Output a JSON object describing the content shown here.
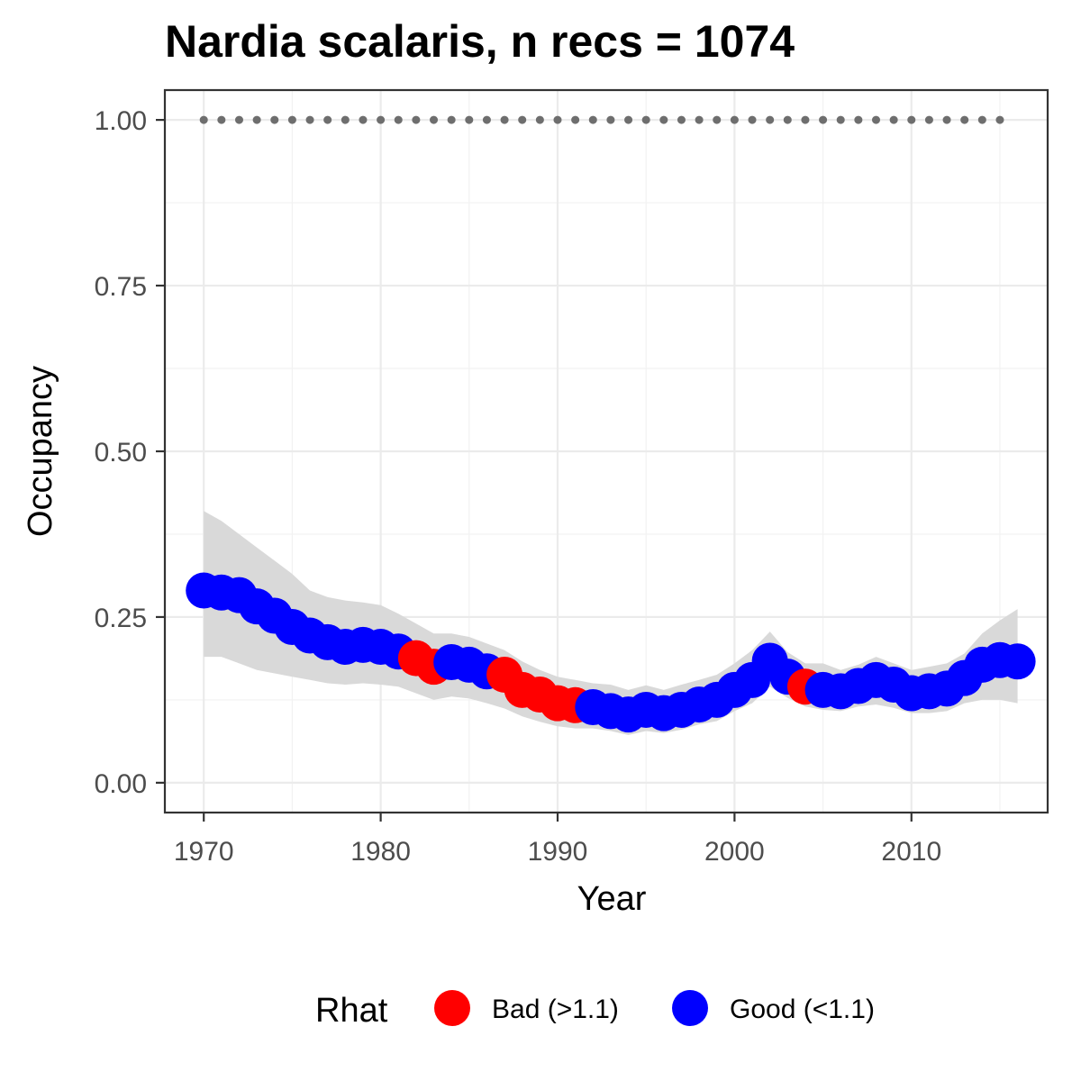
{
  "chart_data": {
    "type": "scatter",
    "title": "Nardia scalaris, n recs = 1074",
    "xlabel": "Year",
    "ylabel": "Occupancy",
    "xlim": [
      1967.8,
      2017.7
    ],
    "ylim": [
      -0.045,
      1.045
    ],
    "x_ticks": [
      1970,
      1980,
      1990,
      2000,
      2010
    ],
    "x_tick_labels": [
      "1970",
      "1980",
      "1990",
      "2000",
      "2010"
    ],
    "y_ticks": [
      0,
      0.25,
      0.5,
      0.75,
      1.0
    ],
    "y_tick_labels": [
      "0.00",
      "0.25",
      "0.50",
      "0.75",
      "1.00"
    ],
    "grid": true,
    "legend": {
      "title": "Rhat",
      "position": "bottom",
      "entries": [
        {
          "label": "Bad (>1.1)",
          "color": "#ff0000"
        },
        {
          "label": "Good (<1.1)",
          "color": "#0000ff"
        }
      ]
    },
    "colors": {
      "bad": "#ff0000",
      "good": "#0000ff",
      "ribbon": "#d9d9d9",
      "reference": "#6e6e6e"
    },
    "series": [
      {
        "key": "occupancy",
        "years": [
          1970,
          1971,
          1972,
          1973,
          1974,
          1975,
          1976,
          1977,
          1978,
          1979,
          1980,
          1981,
          1982,
          1983,
          1984,
          1985,
          1986,
          1987,
          1988,
          1989,
          1990,
          1991,
          1992,
          1993,
          1994,
          1995,
          1996,
          1997,
          1998,
          1999,
          2000,
          2001,
          2002,
          2003,
          2004,
          2005,
          2006,
          2007,
          2008,
          2009,
          2010,
          2011,
          2012,
          2013,
          2014,
          2015,
          2016
        ],
        "values": [
          0.29,
          0.287,
          0.283,
          0.266,
          0.252,
          0.235,
          0.222,
          0.212,
          0.205,
          0.208,
          0.205,
          0.198,
          0.188,
          0.175,
          0.182,
          0.178,
          0.168,
          0.163,
          0.14,
          0.133,
          0.12,
          0.117,
          0.114,
          0.108,
          0.103,
          0.11,
          0.105,
          0.11,
          0.118,
          0.125,
          0.14,
          0.155,
          0.184,
          0.16,
          0.145,
          0.14,
          0.138,
          0.146,
          0.155,
          0.148,
          0.135,
          0.138,
          0.142,
          0.158,
          0.178,
          0.185,
          0.183
        ],
        "rhat": [
          "good",
          "good",
          "good",
          "good",
          "good",
          "good",
          "good",
          "good",
          "good",
          "good",
          "good",
          "good",
          "bad",
          "bad",
          "good",
          "good",
          "good",
          "bad",
          "bad",
          "bad",
          "bad",
          "bad",
          "good",
          "good",
          "good",
          "good",
          "good",
          "good",
          "good",
          "good",
          "good",
          "good",
          "good",
          "good",
          "bad",
          "good",
          "good",
          "good",
          "good",
          "good",
          "good",
          "good",
          "good",
          "good",
          "good",
          "good",
          "good"
        ]
      },
      {
        "key": "interval",
        "years": [
          1970,
          1971,
          1972,
          1973,
          1974,
          1975,
          1976,
          1977,
          1978,
          1979,
          1980,
          1981,
          1982,
          1983,
          1984,
          1985,
          1986,
          1987,
          1988,
          1989,
          1990,
          1991,
          1992,
          1993,
          1994,
          1995,
          1996,
          1997,
          1998,
          1999,
          2000,
          2001,
          2002,
          2003,
          2004,
          2005,
          2006,
          2007,
          2008,
          2009,
          2010,
          2011,
          2012,
          2013,
          2014,
          2015,
          2016
        ],
        "lower": [
          0.19,
          0.19,
          0.18,
          0.17,
          0.165,
          0.16,
          0.155,
          0.15,
          0.148,
          0.15,
          0.148,
          0.145,
          0.135,
          0.125,
          0.13,
          0.127,
          0.12,
          0.112,
          0.1,
          0.092,
          0.085,
          0.082,
          0.082,
          0.078,
          0.072,
          0.078,
          0.075,
          0.08,
          0.088,
          0.093,
          0.108,
          0.12,
          0.145,
          0.128,
          0.115,
          0.11,
          0.108,
          0.115,
          0.118,
          0.113,
          0.105,
          0.105,
          0.108,
          0.12,
          0.125,
          0.125,
          0.12
        ],
        "upper": [
          0.41,
          0.395,
          0.375,
          0.355,
          0.335,
          0.315,
          0.29,
          0.28,
          0.275,
          0.272,
          0.268,
          0.255,
          0.24,
          0.225,
          0.225,
          0.22,
          0.21,
          0.2,
          0.183,
          0.17,
          0.16,
          0.155,
          0.15,
          0.148,
          0.14,
          0.147,
          0.14,
          0.148,
          0.155,
          0.163,
          0.18,
          0.2,
          0.228,
          0.197,
          0.18,
          0.18,
          0.17,
          0.178,
          0.19,
          0.18,
          0.17,
          0.175,
          0.18,
          0.195,
          0.225,
          0.245,
          0.262
        ]
      },
      {
        "key": "reference",
        "years": [
          1970,
          1971,
          1972,
          1973,
          1974,
          1975,
          1976,
          1977,
          1978,
          1979,
          1980,
          1981,
          1982,
          1983,
          1984,
          1985,
          1986,
          1987,
          1988,
          1989,
          1990,
          1991,
          1992,
          1993,
          1994,
          1995,
          1996,
          1997,
          1998,
          1999,
          2000,
          2001,
          2002,
          2003,
          2004,
          2005,
          2006,
          2007,
          2008,
          2009,
          2010,
          2011,
          2012,
          2013,
          2014,
          2015
        ],
        "value": 1.0
      }
    ]
  }
}
